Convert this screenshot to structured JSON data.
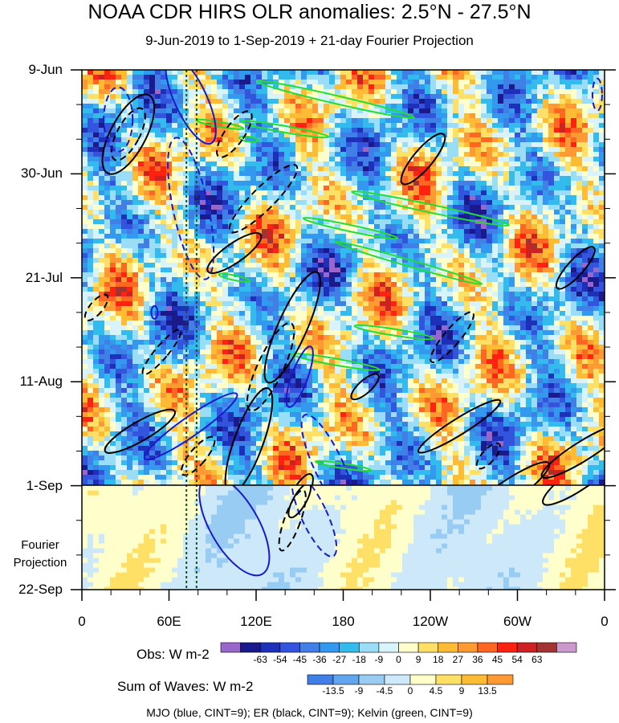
{
  "chart_data": {
    "type": "heatmap",
    "title": "NOAA CDR HIRS OLR anomalies: 2.5°N - 27.5°N",
    "subtitle": "9-Jun-2019 to 1-Sep-2019 + 21-day Fourier Projection",
    "y_ticks": [
      "9-Jun",
      "30-Jun",
      "21-Jul",
      "11-Aug",
      "1-Sep",
      "22-Sep"
    ],
    "x_ticks": [
      "0",
      "60E",
      "120E",
      "180",
      "120W",
      "60W",
      "0"
    ],
    "x_range_deg": [
      0,
      360
    ],
    "y_days_range": [
      0,
      105
    ],
    "forecast_start_day": 84,
    "projection_label": "Fourier Projection",
    "reference_lines_lon_deg": [
      72,
      79
    ],
    "obs_colorbar": {
      "title": "Obs: W m-2",
      "levels": [
        "-63",
        "-54",
        "-45",
        "-36",
        "-27",
        "-18",
        "-9",
        "0",
        "9",
        "18",
        "27",
        "36",
        "45",
        "54",
        "63"
      ],
      "colors": [
        "#9966cc",
        "#1a1a8c",
        "#1f30b8",
        "#3355dd",
        "#3f7fe6",
        "#3399ee",
        "#33bbee",
        "#99ddf7",
        "#d9f3fb",
        "#ffffcc",
        "#ffe066",
        "#ffbb33",
        "#ff9933",
        "#ff6622",
        "#ff2211",
        "#cc2222",
        "#a33333",
        "#cc99cc"
      ]
    },
    "waves_colorbar": {
      "title": "Sum of Waves: W m-2",
      "levels": [
        "-13.5",
        "-9",
        "-4.5",
        "0",
        "4.5",
        "9",
        "13.5"
      ],
      "colors": [
        "#3f7fe6",
        "#5fa6ee",
        "#99ccf2",
        "#cce8f9",
        "#ffffcc",
        "#ffe066",
        "#ffbb33",
        "#ff9933"
      ]
    },
    "legend_note": "MJO (blue, CINT=9); ER (black, CINT=9); Kelvin (green, CINT=9)",
    "series_colors": {
      "mjo": "#1a1acc",
      "er": "#000000",
      "kelvin": "#22dd33"
    }
  }
}
